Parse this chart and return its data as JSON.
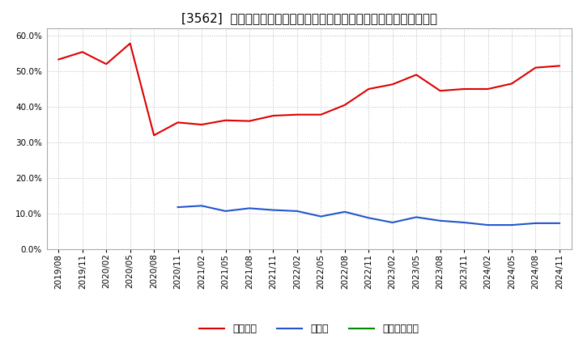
{
  "title": "[3562]  自己資本、のれん、繰延税金資産の総資産に対する比率の推移",
  "ylim": [
    0.0,
    0.62
  ],
  "yticks": [
    0.0,
    0.1,
    0.2,
    0.3,
    0.4,
    0.5,
    0.6
  ],
  "background_color": "#ffffff",
  "plot_bg_color": "#ffffff",
  "grid_color": "#bbbbbb",
  "x_labels": [
    "2019/08",
    "2019/11",
    "2020/02",
    "2020/05",
    "2020/08",
    "2020/11",
    "2021/02",
    "2021/05",
    "2021/08",
    "2021/11",
    "2022/02",
    "2022/05",
    "2022/08",
    "2022/11",
    "2023/02",
    "2023/05",
    "2023/08",
    "2023/11",
    "2024/02",
    "2024/05",
    "2024/08",
    "2024/11"
  ],
  "jikoshihon": [
    0.533,
    0.554,
    0.52,
    0.578,
    0.32,
    0.356,
    0.35,
    0.362,
    0.36,
    0.375,
    0.378,
    0.378,
    0.405,
    0.45,
    0.463,
    0.49,
    0.445,
    0.45,
    0.45,
    0.465,
    0.51,
    0.515
  ],
  "noren": [
    null,
    null,
    null,
    null,
    null,
    0.118,
    0.122,
    0.107,
    0.115,
    0.11,
    0.107,
    0.092,
    0.105,
    0.088,
    0.075,
    0.09,
    0.08,
    0.075,
    0.068,
    0.068,
    0.073,
    0.073
  ],
  "kurinobe": [
    null,
    null,
    null,
    null,
    null,
    null,
    null,
    null,
    null,
    null,
    null,
    null,
    null,
    null,
    null,
    null,
    null,
    null,
    null,
    null,
    null,
    null
  ],
  "jikoshihon_color": "#dd0000",
  "noren_color": "#2255cc",
  "kurinobe_color": "#008800",
  "legend_labels": [
    "自己資本",
    "のれん",
    "繰延税金資産"
  ],
  "title_fontsize": 11,
  "tick_fontsize": 7.5,
  "legend_fontsize": 9
}
